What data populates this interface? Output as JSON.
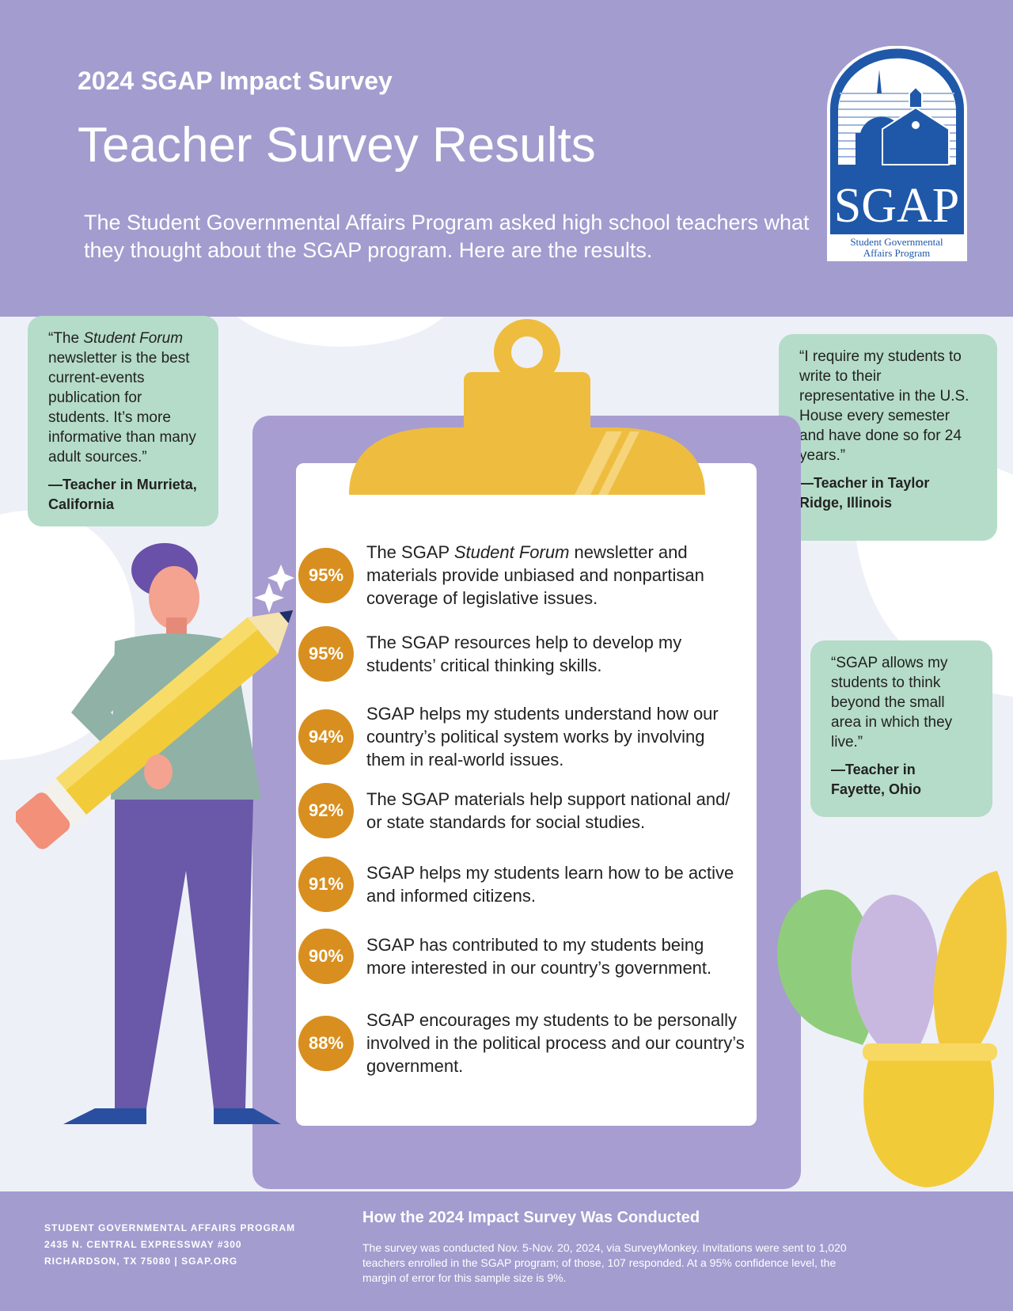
{
  "header": {
    "kicker": "2024 SGAP Impact Survey",
    "title": "Teacher Survey Results",
    "subtitle": "The Student Governmental Affairs Program asked high school teachers what they thought about the SGAP program. Here are the results."
  },
  "logo": {
    "text": "SGAP",
    "line1": "Student Governmental",
    "line2": "Affairs Program"
  },
  "quotes": [
    {
      "pre": "“The ",
      "em": "Student Forum",
      "post": " newsletter is the best current-events publication for students. It’s more informative than many adult sources.”",
      "who": "—Teacher in Murrieta, California"
    },
    {
      "text": "“I require my students to write to their representative in the U.S. House every semester and have done so for 24 years.”",
      "who": "—Teacher in Taylor Ridge, Illinois"
    },
    {
      "text": "“SGAP allows my students to think beyond the small area in which they live.”",
      "who": "—Teacher in Fayette, Ohio"
    }
  ],
  "items": [
    {
      "pct": "95%",
      "pre": "The SGAP ",
      "em": "Student Forum",
      "post": " newsletter and materials provide unbiased and nonpartisan coverage of legislative issues."
    },
    {
      "pct": "95%",
      "text": "The SGAP resources help to develop my students’ critical thinking skills."
    },
    {
      "pct": "94%",
      "text": "SGAP helps my students understand how our country’s political system works by involving them in real-world issues."
    },
    {
      "pct": "92%",
      "text": "The SGAP materials help support national and/ or state standards for social studies."
    },
    {
      "pct": "91%",
      "text": "SGAP helps my students learn how to be active and informed citizens."
    },
    {
      "pct": "90%",
      "text": "SGAP has contributed to my students being more interested in our country’s government."
    },
    {
      "pct": "88%",
      "text": "SGAP encourages my students to be personally involved in the political process and our country’s government."
    }
  ],
  "footer": {
    "org": "STUDENT GOVERNMENTAL AFFAIRS PROGRAM",
    "addr1": "2435 N. CENTRAL EXPRESSWAY #300",
    "addr2": "RICHARDSON, TX 75080 | SGAP.ORG",
    "heading": "How the 2024 Impact Survey Was Conducted",
    "body": "The survey was conducted Nov. 5-Nov. 20, 2024, via SurveyMonkey. Invitations were sent to 1,020 teachers enrolled in the SGAP program; of those, 107 responded. At a 95% confidence level, the margin of error for this sample size is 9%."
  },
  "colors": {
    "header": "#a39ccf",
    "badge": "#d88f1f",
    "quote": "#b5dcc8",
    "logo": "#1f58a8"
  }
}
